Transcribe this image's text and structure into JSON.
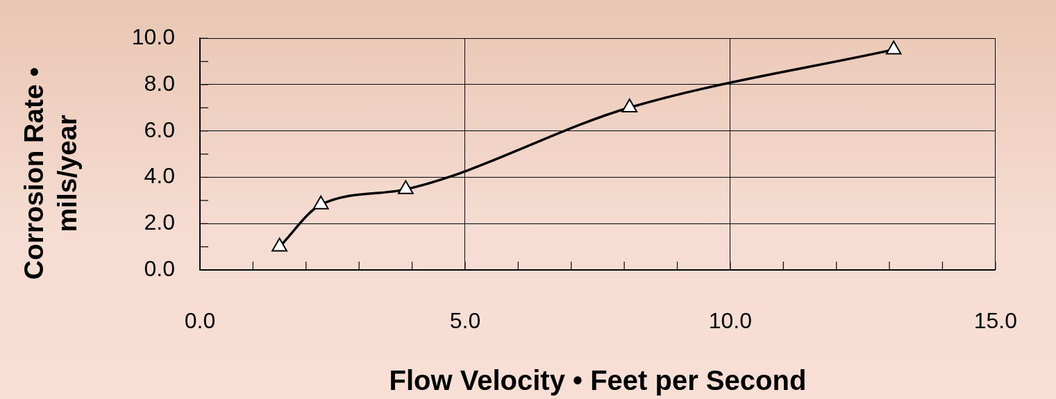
{
  "chart_data": {
    "type": "line",
    "xlabel": "Flow Velocity • Feet per Second",
    "ylabel": "Corrosion Rate • mils/year",
    "x": [
      1.5,
      2.28,
      3.88,
      8.1,
      13.08
    ],
    "series": [
      {
        "color": "#000000",
        "values": [
          1.0,
          2.82,
          3.48,
          7.01,
          9.51
        ]
      }
    ],
    "xlim": [
      0,
      15
    ],
    "xticks": [
      {
        "value": 0,
        "label": "0.0"
      },
      {
        "value": 1,
        "label": null
      },
      {
        "value": 2,
        "label": null
      },
      {
        "value": 3,
        "label": null
      },
      {
        "value": 4,
        "label": null
      },
      {
        "value": 5,
        "label": "5.0"
      },
      {
        "value": 6,
        "label": null
      },
      {
        "value": 7,
        "label": null
      },
      {
        "value": 8,
        "label": null
      },
      {
        "value": 9,
        "label": null
      },
      {
        "value": 10,
        "label": "10.0"
      },
      {
        "value": 11,
        "label": null
      },
      {
        "value": 12,
        "label": null
      },
      {
        "value": 13,
        "label": null
      },
      {
        "value": 14,
        "label": null
      },
      {
        "value": 15,
        "label": "15.0"
      }
    ],
    "ylim": [
      0,
      10
    ],
    "yticks": [
      {
        "value": 0,
        "label": "0.0"
      },
      {
        "value": 1,
        "label": null
      },
      {
        "value": 2,
        "label": "2.0"
      },
      {
        "value": 3,
        "label": null
      },
      {
        "value": 4,
        "label": "4.0"
      },
      {
        "value": 5,
        "label": null
      },
      {
        "value": 6,
        "label": "6.0"
      },
      {
        "value": 7,
        "label": null
      },
      {
        "value": 8,
        "label": "8.0"
      },
      {
        "value": 9,
        "label": null
      },
      {
        "value": 10,
        "label": "10.0"
      }
    ],
    "grid": true,
    "marker": "triangle",
    "line_style": "solid",
    "legend": false
  }
}
